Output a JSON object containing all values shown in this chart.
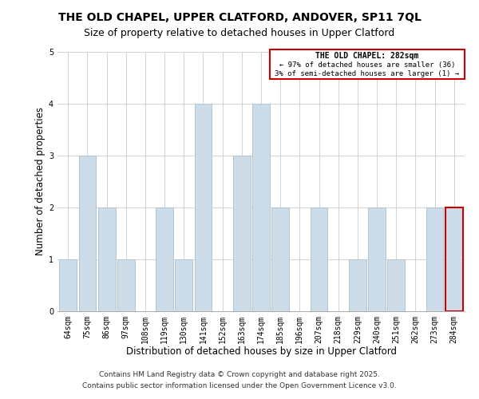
{
  "title": "THE OLD CHAPEL, UPPER CLATFORD, ANDOVER, SP11 7QL",
  "subtitle": "Size of property relative to detached houses in Upper Clatford",
  "xlabel": "Distribution of detached houses by size in Upper Clatford",
  "ylabel": "Number of detached properties",
  "bar_labels": [
    "64sqm",
    "75sqm",
    "86sqm",
    "97sqm",
    "108sqm",
    "119sqm",
    "130sqm",
    "141sqm",
    "152sqm",
    "163sqm",
    "174sqm",
    "185sqm",
    "196sqm",
    "207sqm",
    "218sqm",
    "229sqm",
    "240sqm",
    "251sqm",
    "262sqm",
    "273sqm",
    "284sqm"
  ],
  "bar_heights": [
    1,
    3,
    2,
    1,
    0,
    2,
    1,
    4,
    0,
    3,
    4,
    2,
    0,
    2,
    0,
    1,
    2,
    1,
    0,
    2,
    2
  ],
  "bar_color": "#ccdce8",
  "bar_edgecolor": "#b0c4d4",
  "highlight_bar_index": 20,
  "highlight_bar_edgecolor": "#cc0000",
  "box_text_line1": "THE OLD CHAPEL: 282sqm",
  "box_text_line2": "← 97% of detached houses are smaller (36)",
  "box_text_line3": "3% of semi-detached houses are larger (1) →",
  "box_color": "#ffffff",
  "box_edgecolor": "#cc0000",
  "ylim": [
    0,
    5
  ],
  "yticks": [
    0,
    1,
    2,
    3,
    4,
    5
  ],
  "footer_line1": "Contains HM Land Registry data © Crown copyright and database right 2025.",
  "footer_line2": "Contains public sector information licensed under the Open Government Licence v3.0.",
  "background_color": "#ffffff",
  "grid_color": "#cccccc",
  "title_fontsize": 10,
  "subtitle_fontsize": 9,
  "axis_label_fontsize": 8.5,
  "tick_fontsize": 7,
  "footer_fontsize": 6.5
}
